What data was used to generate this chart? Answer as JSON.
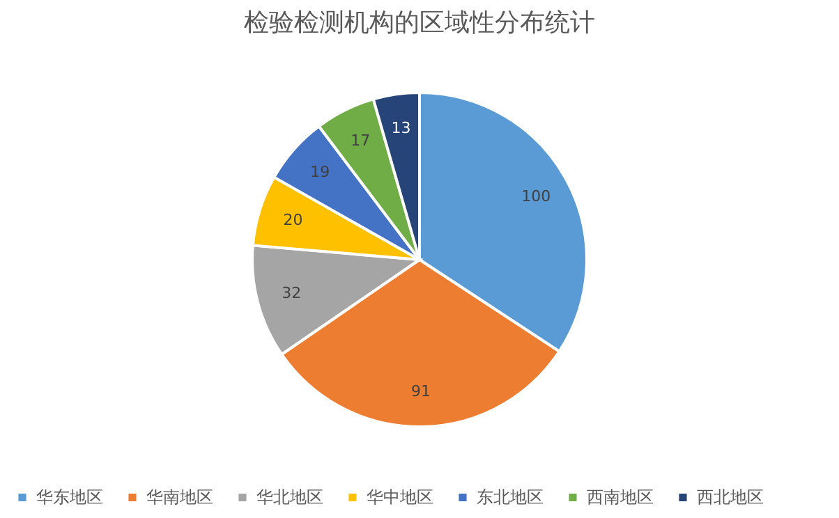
{
  "chart_data": {
    "type": "pie",
    "title": "检验检测机构的区域性分布统计",
    "categories": [
      "华东地区",
      "华南地区",
      "华北地区",
      "华中地区",
      "东北地区",
      "西南地区",
      "西北地区"
    ],
    "values": [
      100,
      91,
      32,
      20,
      19,
      17,
      13
    ],
    "colors": [
      "#5b9bd5",
      "#ed7d31",
      "#a5a5a5",
      "#ffc000",
      "#4472c4",
      "#70ad47",
      "#264478"
    ],
    "data_labels": true,
    "legend": "bottom"
  }
}
